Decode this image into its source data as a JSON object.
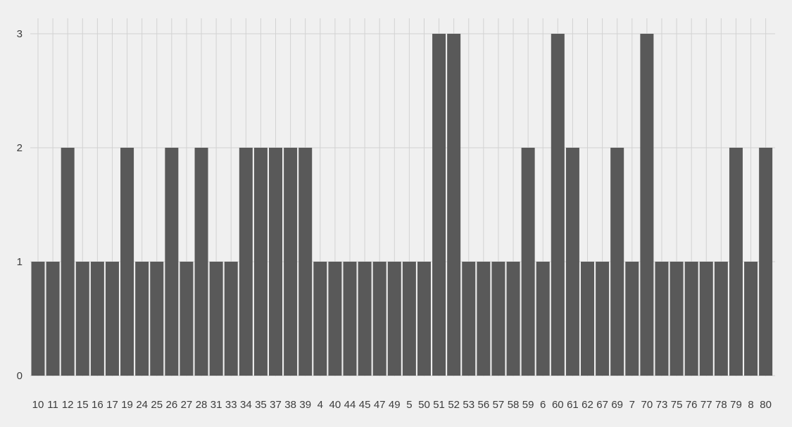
{
  "chart_data": {
    "type": "bar",
    "title": "",
    "xlabel": "",
    "ylabel": "",
    "categories": [
      "10",
      "11",
      "12",
      "15",
      "16",
      "17",
      "19",
      "24",
      "25",
      "26",
      "27",
      "28",
      "31",
      "33",
      "34",
      "35",
      "37",
      "38",
      "39",
      "4",
      "40",
      "44",
      "45",
      "47",
      "49",
      "5",
      "50",
      "51",
      "52",
      "53",
      "56",
      "57",
      "58",
      "59",
      "6",
      "60",
      "61",
      "62",
      "67",
      "69",
      "7",
      "70",
      "73",
      "75",
      "76",
      "77",
      "78",
      "79",
      "8",
      "80"
    ],
    "values": [
      1,
      1,
      2,
      1,
      1,
      1,
      2,
      1,
      1,
      2,
      1,
      2,
      1,
      1,
      2,
      2,
      2,
      2,
      2,
      1,
      1,
      1,
      1,
      1,
      1,
      1,
      1,
      3,
      3,
      1,
      1,
      1,
      1,
      2,
      1,
      3,
      2,
      1,
      1,
      2,
      1,
      3,
      1,
      1,
      1,
      1,
      1,
      2,
      1,
      2
    ],
    "ylim": [
      0,
      3
    ],
    "yticks": [
      0,
      1,
      2,
      3
    ],
    "grid": true,
    "legend": "none",
    "colors": {
      "background": "#f0f0f0",
      "bar": "#595959",
      "grid": "#d2d2d2",
      "text": "#3c3c3c"
    }
  }
}
